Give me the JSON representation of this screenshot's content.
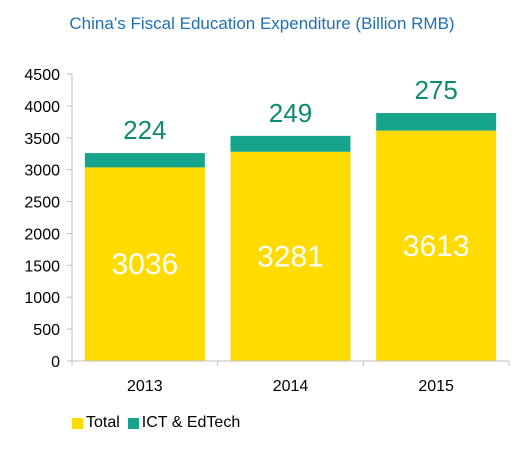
{
  "chart_data": {
    "type": "bar",
    "stacked": true,
    "title": "China’s Fiscal Education Expenditure (Billion RMB)",
    "categories": [
      "2013",
      "2014",
      "2015"
    ],
    "series": [
      {
        "name": "Total",
        "values": [
          3036,
          3281,
          3613
        ],
        "color": "#ffdb00"
      },
      {
        "name": "ICT & EdTech",
        "values": [
          224,
          249,
          275
        ],
        "color": "#16a48d"
      }
    ],
    "ylim": [
      0,
      4500
    ],
    "yticks": [
      0,
      500,
      1000,
      1500,
      2000,
      2500,
      3000,
      3500,
      4000,
      4500
    ],
    "grid": false,
    "legend": "bottom-left"
  }
}
